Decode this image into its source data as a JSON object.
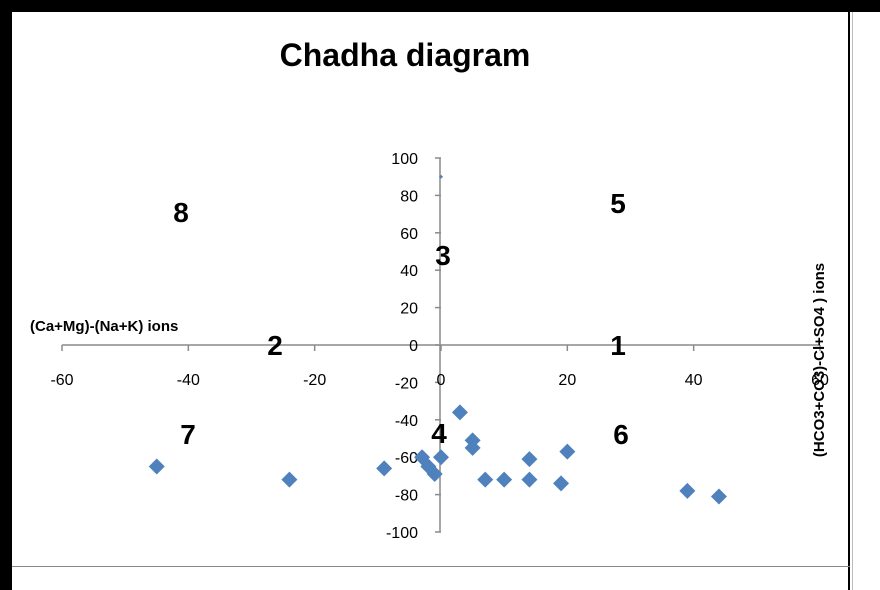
{
  "chart_data": {
    "type": "scatter",
    "title": "Chadha  diagram",
    "xlabel": "(Ca+Mg)-(Na+K)  ions",
    "ylabel": "(HCO3+CO3)-Cl+SO4 )  ions",
    "xlim": [
      -60,
      60
    ],
    "ylim": [
      -100,
      100
    ],
    "x_ticks": [
      "-60",
      "-40",
      "-20",
      "0",
      "20",
      "40",
      "60"
    ],
    "y_ticks": [
      "100",
      "80",
      "60",
      "40",
      "20",
      "0",
      "-20",
      "-40",
      "-60",
      "-80",
      "-100"
    ],
    "x_tick_values": [
      -60,
      -40,
      -20,
      0,
      20,
      40,
      60
    ],
    "y_tick_values": [
      100,
      80,
      60,
      40,
      20,
      0,
      -20,
      -40,
      -60,
      -80,
      -100
    ],
    "marker_color": "#4f81bd",
    "grid": false,
    "legend": "none",
    "zone_labels": [
      "1",
      "2",
      "3",
      "4",
      "5",
      "6",
      "7",
      "8"
    ],
    "series": [
      {
        "x": [
          0,
          -45,
          -24,
          -9,
          -3,
          -2,
          -1,
          0,
          3,
          5,
          5,
          7,
          10,
          14,
          14,
          19,
          20,
          39,
          44
        ],
        "y": [
          90,
          -65,
          -72,
          -66,
          -60,
          -65,
          -69,
          -60,
          -36,
          -51,
          -55,
          -72,
          -72,
          -61,
          -72,
          -74,
          -57,
          -78,
          -81
        ]
      }
    ]
  }
}
